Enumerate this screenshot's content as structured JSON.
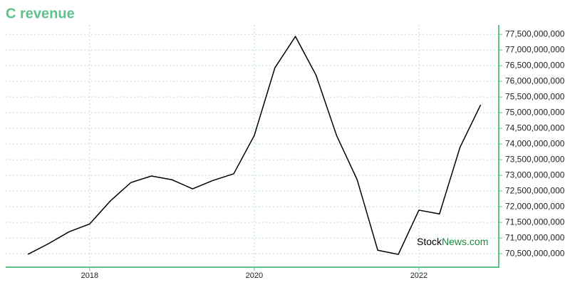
{
  "chart_data": {
    "type": "line",
    "title": "C revenue",
    "color": "#000000",
    "axis_color": "#5cc488",
    "grid": true,
    "x": [
      2017.25,
      2017.5,
      2017.75,
      2018.0,
      2018.25,
      2018.5,
      2018.75,
      2019.0,
      2019.25,
      2019.5,
      2019.75,
      2020.0,
      2020.25,
      2020.5,
      2020.75,
      2021.0,
      2021.25,
      2021.5,
      2021.75,
      2022.0,
      2022.25,
      2022.5,
      2022.75
    ],
    "values": [
      70480000000,
      70820000000,
      71200000000,
      71450000000,
      72180000000,
      72770000000,
      72980000000,
      72860000000,
      72570000000,
      72840000000,
      73050000000,
      74270000000,
      76430000000,
      77430000000,
      76200000000,
      74270000000,
      72860000000,
      70610000000,
      70480000000,
      71890000000,
      71770000000,
      73900000000,
      75250000000
    ],
    "xlim": [
      2016.98,
      2022.97
    ],
    "ylim": [
      70070000000,
      77800000000
    ],
    "xticks": [
      2018,
      2020,
      2022
    ],
    "yticks": [
      {
        "value": 70500000000,
        "label": "70,500,000,000"
      },
      {
        "value": 71000000000,
        "label": "71,000,000,000"
      },
      {
        "value": 71500000000,
        "label": "71,500,000,000"
      },
      {
        "value": 72000000000,
        "label": "72,000,000,000"
      },
      {
        "value": 72500000000,
        "label": "72,500,000,000"
      },
      {
        "value": 73000000000,
        "label": "73,000,000,000"
      },
      {
        "value": 73500000000,
        "label": "73,500,000,000"
      },
      {
        "value": 74000000000,
        "label": "74,000,000,000"
      },
      {
        "value": 74500000000,
        "label": "74,500,000,000"
      },
      {
        "value": 75000000000,
        "label": "75,000,000,000"
      },
      {
        "value": 75500000000,
        "label": "75,500,000,000"
      },
      {
        "value": 76000000000,
        "label": "76,000,000,000"
      },
      {
        "value": 76500000000,
        "label": "76,500,000,000"
      },
      {
        "value": 77000000000,
        "label": "77,000,000,000"
      },
      {
        "value": 77500000000,
        "label": "77,500,000,000"
      }
    ],
    "watermark": {
      "brand": "Stock",
      "domain": "News.com"
    }
  }
}
